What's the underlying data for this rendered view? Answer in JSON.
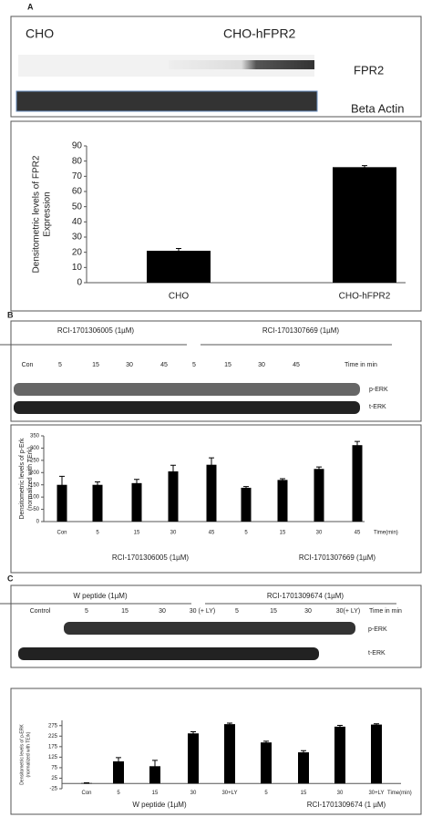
{
  "chart_data": [
    {
      "type": "bar",
      "ylabel": [
        "Densitometric levels of FPR2",
        "Expression"
      ],
      "categories": [
        "CHO",
        "CHO-hFPR2"
      ],
      "series": [
        {
          "color": "#000000",
          "values": [
            21,
            76
          ],
          "errors": [
            1.5,
            1
          ]
        }
      ],
      "ylim": [
        0,
        90
      ],
      "yticks": [
        0,
        10,
        20,
        30,
        40,
        50,
        60,
        70,
        80,
        90
      ],
      "grid": false
    },
    {
      "type": "bar",
      "ylabel": [
        "Densitometric levels of p-Erk",
        "(normalized with TErk)"
      ],
      "xlabel": "Time(min)",
      "categories": [
        "Con",
        "5",
        "15",
        "30",
        "45",
        "5",
        "15",
        "30",
        "45"
      ],
      "groups": [
        "RCI-1701306005 (1µM)",
        "RCI-1701307669 (1µM)"
      ],
      "series": [
        {
          "color": "#000000",
          "values": [
            150,
            150,
            157,
            205,
            232,
            138,
            170,
            215,
            312
          ],
          "errors": [
            35,
            12,
            15,
            25,
            28,
            5,
            5,
            8,
            15
          ]
        }
      ],
      "ylim": [
        0,
        350
      ],
      "yticks": [
        0,
        50,
        100,
        150,
        200,
        250,
        300,
        350
      ],
      "grid": false
    },
    {
      "type": "bar",
      "ylabel": [
        "Densitometric levels of p-ERK",
        "(normalized with TErk)"
      ],
      "xlabel": "Time(min)",
      "categories": [
        "Con",
        "5",
        "15",
        "30",
        "30+LY",
        "5",
        "15",
        "30",
        "30+LY"
      ],
      "groups": [
        "W peptide (1µM)",
        "RCI-1701309674 (1 µM)"
      ],
      "series": [
        {
          "color": "#000000",
          "values": [
            2,
            105,
            82,
            238,
            282,
            195,
            148,
            270,
            280
          ],
          "errors": [
            1,
            18,
            28,
            8,
            5,
            6,
            8,
            6,
            4
          ]
        }
      ],
      "ylim": [
        -25,
        300
      ],
      "yticks": [
        -25,
        25,
        75,
        125,
        175,
        225,
        275
      ],
      "grid": false
    }
  ],
  "blots": {
    "a": {
      "panel": "A",
      "left": "CHO",
      "right": "CHO-hFPR2",
      "band1": "FPR2",
      "band2": "Beta Actin"
    },
    "b": {
      "panel": "B",
      "groups": [
        "RCI-1701306005 (1µM)",
        "RCI-1701307669 (1µM)"
      ],
      "lanes": [
        "Con",
        "5",
        "15",
        "30",
        "45",
        "5",
        "15",
        "30",
        "45"
      ],
      "time": "Time in min",
      "band1": "p-ERK",
      "band2": "t-ERK"
    },
    "c": {
      "panel": "C",
      "groups": [
        "W peptide (1µM)",
        "RCI-1701309674 (1µM)"
      ],
      "lanes": [
        "Control",
        "5",
        "15",
        "30",
        "30 (+ LY)",
        "5",
        "15",
        "30",
        "30(+ LY)"
      ],
      "time": "Time in min",
      "band1": "p-ERK",
      "band2": "t-ERK"
    }
  }
}
